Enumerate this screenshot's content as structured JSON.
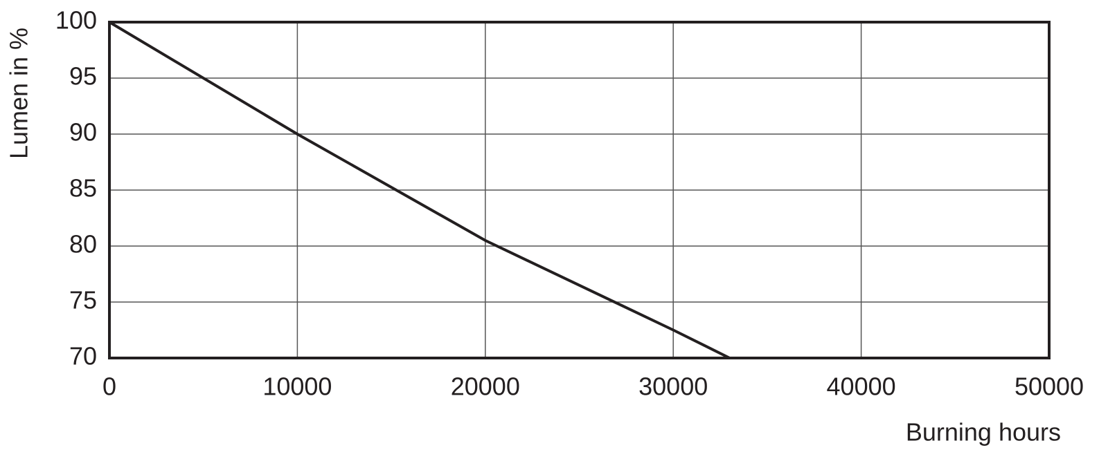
{
  "chart_data": {
    "type": "line",
    "xlabel": "Burning hours",
    "ylabel": "Lumen in %",
    "x": [
      0,
      10000,
      20000,
      30000,
      33000
    ],
    "series": [
      {
        "color": "#231f20",
        "values": [
          100,
          90,
          80.5,
          72.5,
          70
        ]
      }
    ],
    "xlim": [
      0,
      50000
    ],
    "xticks": [
      0,
      10000,
      20000,
      30000,
      40000,
      50000
    ],
    "ylim": [
      70,
      100
    ],
    "yticks": [
      70,
      75,
      80,
      85,
      90,
      95,
      100
    ],
    "grid": true
  }
}
